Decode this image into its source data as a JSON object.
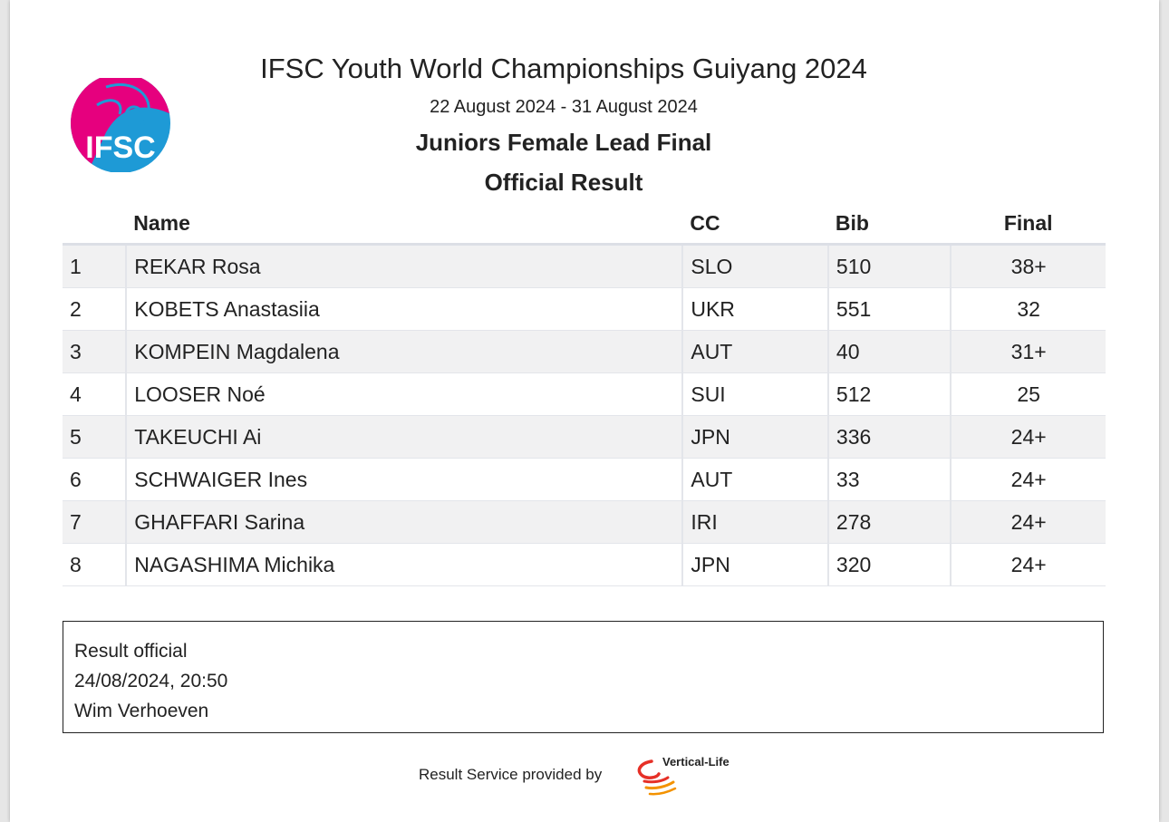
{
  "header": {
    "title": "IFSC Youth World Championships Guiyang 2024",
    "dates": "22 August 2024 - 31 August 2024",
    "event": "Juniors Female Lead Final",
    "status": "Official Result",
    "logo_text": "IFSC"
  },
  "table": {
    "columns": [
      "",
      "Name",
      "CC",
      "Bib",
      "Final"
    ],
    "rows": [
      {
        "rank": "1",
        "name": "REKAR Rosa",
        "cc": "SLO",
        "bib": "510",
        "final": "38+"
      },
      {
        "rank": "2",
        "name": "KOBETS Anastasiia",
        "cc": "UKR",
        "bib": "551",
        "final": "32"
      },
      {
        "rank": "3",
        "name": "KOMPEIN Magdalena",
        "cc": "AUT",
        "bib": "40",
        "final": "31+"
      },
      {
        "rank": "4",
        "name": "LOOSER Noé",
        "cc": "SUI",
        "bib": "512",
        "final": "25"
      },
      {
        "rank": "5",
        "name": "TAKEUCHI Ai",
        "cc": "JPN",
        "bib": "336",
        "final": "24+"
      },
      {
        "rank": "6",
        "name": "SCHWAIGER Ines",
        "cc": "AUT",
        "bib": "33",
        "final": "24+"
      },
      {
        "rank": "7",
        "name": "GHAFFARI Sarina",
        "cc": "IRI",
        "bib": "278",
        "final": "24+"
      },
      {
        "rank": "8",
        "name": "NAGASHIMA Michika",
        "cc": "JPN",
        "bib": "320",
        "final": "24+"
      }
    ]
  },
  "official": {
    "line1": "Result official",
    "line2": "24/08/2024, 20:50",
    "line3": "Wim Verhoeven"
  },
  "footer": {
    "text": "Result Service provided by",
    "provider": "Vertical-Life"
  },
  "colors": {
    "logo_magenta": "#e6007e",
    "logo_blue": "#1e9ad6",
    "provider_red": "#e63027",
    "provider_orange": "#f39200"
  }
}
